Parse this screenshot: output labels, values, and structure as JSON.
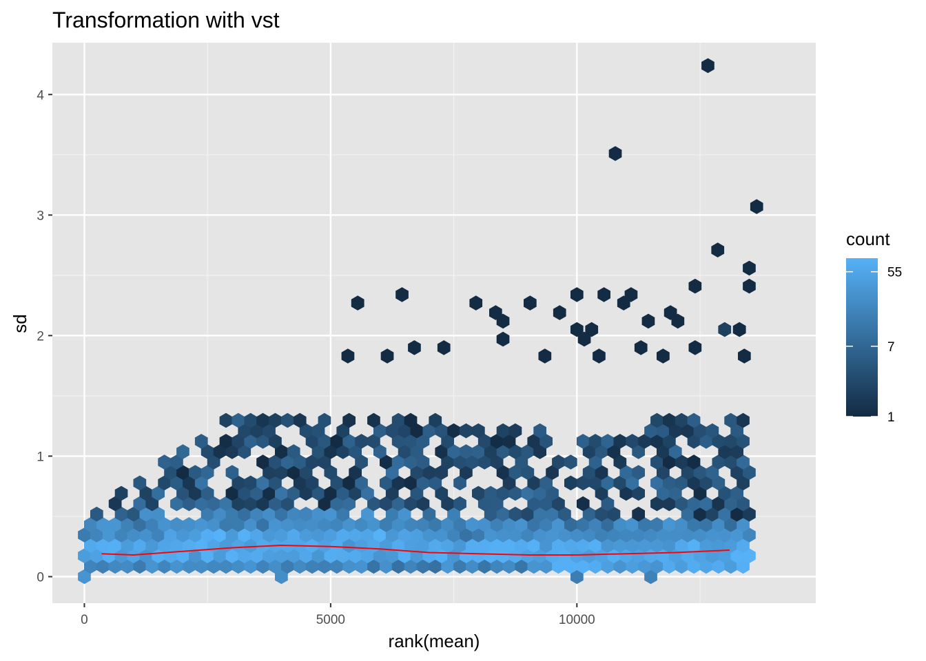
{
  "chart_data": {
    "type": "hexbin",
    "title": "Transformation with vst",
    "xlabel": "rank(mean)",
    "ylabel": "sd",
    "xlim": [
      -650,
      14850
    ],
    "ylim": [
      -0.22,
      4.43
    ],
    "x_ticks": [
      0,
      5000,
      10000
    ],
    "x_tick_labels": [
      "0",
      "5000",
      "10000"
    ],
    "y_ticks": [
      0,
      1,
      2,
      3,
      4
    ],
    "y_tick_labels": [
      "0",
      "1",
      "2",
      "3",
      "4"
    ],
    "grid": true,
    "panel_background": "#e5e5e5",
    "legend": {
      "title": "count",
      "position": "right",
      "scale": "log",
      "breaks": [
        1,
        7,
        55
      ],
      "break_labels": [
        "1",
        "7",
        "55"
      ],
      "range": [
        1,
        80
      ],
      "color_low": "#132b43",
      "color_high": "#56b1f7"
    },
    "trend_line": {
      "color": "#ff0000",
      "x": [
        350,
        1000,
        2000,
        3000,
        4000,
        5000,
        6000,
        7000,
        8000,
        9000,
        10000,
        11000,
        12000,
        13100
      ],
      "y": [
        0.19,
        0.18,
        0.21,
        0.24,
        0.26,
        0.25,
        0.23,
        0.2,
        0.19,
        0.18,
        0.18,
        0.19,
        0.2,
        0.22
      ]
    },
    "outlier_points": [
      {
        "x": 12660,
        "y": 4.24,
        "count": 1
      },
      {
        "x": 10780,
        "y": 3.51,
        "count": 1
      },
      {
        "x": 13650,
        "y": 3.07,
        "count": 1
      },
      {
        "x": 12860,
        "y": 2.71,
        "count": 1
      },
      {
        "x": 13500,
        "y": 2.56,
        "count": 1
      },
      {
        "x": 12400,
        "y": 2.41,
        "count": 1
      },
      {
        "x": 13500,
        "y": 2.41,
        "count": 1
      },
      {
        "x": 6450,
        "y": 2.34,
        "count": 1
      },
      {
        "x": 10000,
        "y": 2.34,
        "count": 1
      },
      {
        "x": 10550,
        "y": 2.34,
        "count": 1
      },
      {
        "x": 11100,
        "y": 2.34,
        "count": 1
      },
      {
        "x": 5550,
        "y": 2.27,
        "count": 1
      },
      {
        "x": 7950,
        "y": 2.27,
        "count": 1
      },
      {
        "x": 9050,
        "y": 2.27,
        "count": 1
      },
      {
        "x": 10950,
        "y": 2.27,
        "count": 1
      },
      {
        "x": 8350,
        "y": 2.19,
        "count": 1
      },
      {
        "x": 9650,
        "y": 2.19,
        "count": 1
      },
      {
        "x": 11900,
        "y": 2.19,
        "count": 1
      },
      {
        "x": 8500,
        "y": 2.12,
        "count": 1
      },
      {
        "x": 11450,
        "y": 2.12,
        "count": 1
      },
      {
        "x": 12050,
        "y": 2.12,
        "count": 1
      },
      {
        "x": 10000,
        "y": 2.05,
        "count": 1
      },
      {
        "x": 10300,
        "y": 2.05,
        "count": 1
      },
      {
        "x": 13000,
        "y": 2.05,
        "count": 2
      },
      {
        "x": 13300,
        "y": 2.05,
        "count": 1
      },
      {
        "x": 10150,
        "y": 1.97,
        "count": 1
      },
      {
        "x": 8500,
        "y": 1.97,
        "count": 1
      },
      {
        "x": 6700,
        "y": 1.9,
        "count": 1
      },
      {
        "x": 7300,
        "y": 1.9,
        "count": 1
      },
      {
        "x": 11300,
        "y": 1.9,
        "count": 1
      },
      {
        "x": 12400,
        "y": 1.9,
        "count": 1
      },
      {
        "x": 13400,
        "y": 1.83,
        "count": 1
      },
      {
        "x": 9350,
        "y": 1.83,
        "count": 1
      },
      {
        "x": 10450,
        "y": 1.83,
        "count": 1
      },
      {
        "x": 11750,
        "y": 1.83,
        "count": 1
      },
      {
        "x": 5350,
        "y": 1.83,
        "count": 1
      },
      {
        "x": 6150,
        "y": 1.83,
        "count": 1
      }
    ]
  }
}
